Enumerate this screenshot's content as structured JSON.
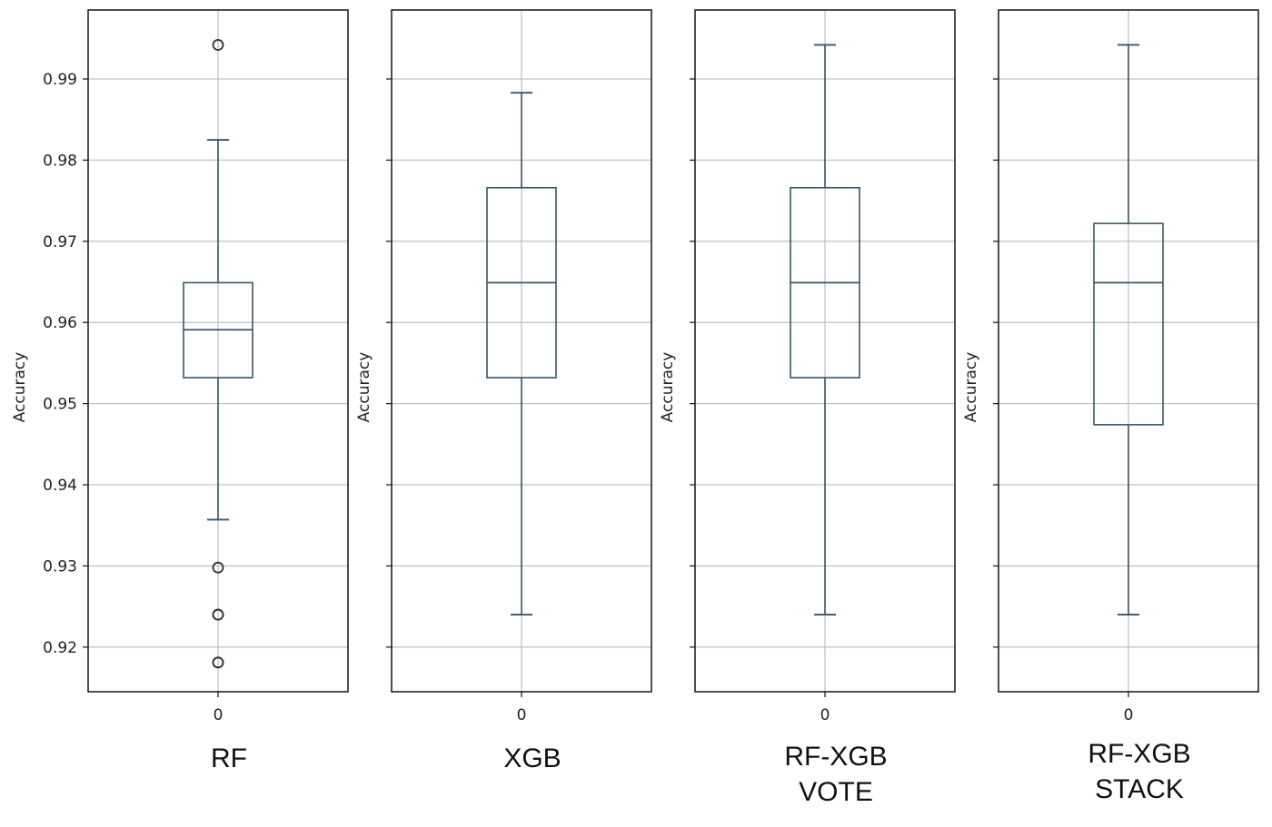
{
  "chart_data": [
    {
      "type": "box",
      "caption": [
        "RF"
      ],
      "ylabel": "Accuracy",
      "xtick": "0",
      "ylim": [
        0.9145,
        0.9985
      ],
      "yticks": [
        0.92,
        0.93,
        0.94,
        0.95,
        0.96,
        0.97,
        0.98,
        0.99
      ],
      "grid": true,
      "q1": 0.9532,
      "median": 0.9591,
      "q3": 0.9649,
      "whisker_low": 0.9357,
      "whisker_high": 0.9825,
      "outliers": [
        0.9942,
        0.9298,
        0.924,
        0.924,
        0.9181,
        0.9181
      ]
    },
    {
      "type": "box",
      "caption": [
        "XGB"
      ],
      "ylabel": "Accuracy",
      "xtick": "0",
      "ylim": [
        0.9145,
        0.9985
      ],
      "yticks": [
        0.92,
        0.93,
        0.94,
        0.95,
        0.96,
        0.97,
        0.98,
        0.99
      ],
      "grid": true,
      "q1": 0.9532,
      "median": 0.9649,
      "q3": 0.9766,
      "whisker_low": 0.924,
      "whisker_high": 0.9883,
      "outliers": []
    },
    {
      "type": "box",
      "caption": [
        "RF-XGB",
        "VOTE"
      ],
      "ylabel": "Accuracy",
      "xtick": "0",
      "ylim": [
        0.9145,
        0.9985
      ],
      "yticks": [
        0.92,
        0.93,
        0.94,
        0.95,
        0.96,
        0.97,
        0.98,
        0.99
      ],
      "grid": true,
      "q1": 0.9532,
      "median": 0.9649,
      "q3": 0.9766,
      "whisker_low": 0.924,
      "whisker_high": 0.9942,
      "outliers": []
    },
    {
      "type": "box",
      "caption": [
        "RF-XGB",
        "STACK"
      ],
      "ylabel": "Accuracy",
      "xtick": "0",
      "ylim": [
        0.9145,
        0.9985
      ],
      "yticks": [
        0.92,
        0.93,
        0.94,
        0.95,
        0.96,
        0.97,
        0.98,
        0.99
      ],
      "grid": true,
      "q1": 0.9474,
      "median": 0.9649,
      "q3": 0.9722,
      "whisker_low": 0.924,
      "whisker_high": 0.9942,
      "outliers": []
    }
  ],
  "colors": {
    "box": "#3b5566",
    "grid": "#c4c4c4",
    "axes": "#222222",
    "outlier": "#333333"
  }
}
